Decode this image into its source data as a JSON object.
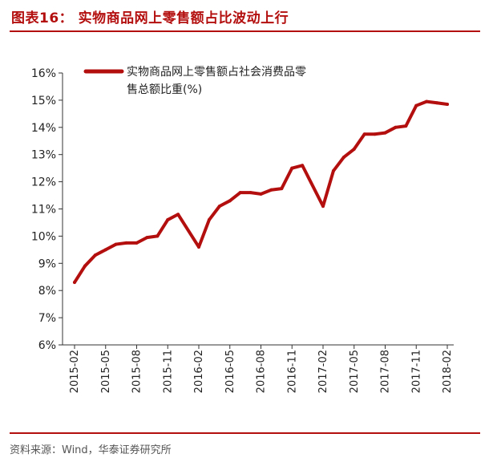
{
  "header": {
    "title": "图表16：  实物商品网上零售额占比波动上行"
  },
  "footer": {
    "source": "资料来源：Wind，华泰证券研究所"
  },
  "colors": {
    "accent": "#b40f0f",
    "axis": "#333333"
  },
  "chart_data": {
    "type": "line",
    "title": "图表16：  实物商品网上零售额占比波动上行",
    "xlabel": "",
    "ylabel": "",
    "ylim": [
      6,
      16
    ],
    "yticks": [
      "6%",
      "7%",
      "8%",
      "9%",
      "10%",
      "11%",
      "12%",
      "13%",
      "14%",
      "15%",
      "16%"
    ],
    "x_tick_labels": [
      "2015-02",
      "2015-05",
      "2015-08",
      "2015-11",
      "2016-02",
      "2016-05",
      "2016-08",
      "2016-11",
      "2017-02",
      "2017-05",
      "2017-08",
      "2017-11",
      "2018-02"
    ],
    "grid": false,
    "legend_position": "top-left",
    "series": [
      {
        "name": "实物商品网上零售额占社会消费品零售总额比重(%)",
        "legend_lines": [
          "实物商品网上零售额占社会消费品零",
          "售总额比重(%)"
        ],
        "color": "#b40f0f",
        "x": [
          "2015-02",
          "2015-03",
          "2015-04",
          "2015-05",
          "2015-06",
          "2015-07",
          "2015-08",
          "2015-09",
          "2015-10",
          "2015-11",
          "2015-12",
          "2016-02",
          "2016-03",
          "2016-04",
          "2016-05",
          "2016-06",
          "2016-07",
          "2016-08",
          "2016-09",
          "2016-10",
          "2016-11",
          "2016-12",
          "2017-02",
          "2017-03",
          "2017-04",
          "2017-05",
          "2017-06",
          "2017-07",
          "2017-08",
          "2017-09",
          "2017-10",
          "2017-11",
          "2017-12",
          "2018-01",
          "2018-02"
        ],
        "values": [
          8.3,
          8.9,
          9.3,
          9.5,
          9.7,
          9.75,
          9.75,
          9.95,
          10.0,
          10.6,
          10.8,
          9.6,
          10.6,
          11.1,
          11.3,
          11.6,
          11.6,
          11.55,
          11.7,
          11.75,
          12.5,
          12.6,
          11.1,
          12.4,
          12.9,
          13.2,
          13.75,
          13.75,
          13.8,
          14.0,
          14.05,
          14.8,
          14.95,
          14.9,
          14.85
        ]
      }
    ]
  }
}
